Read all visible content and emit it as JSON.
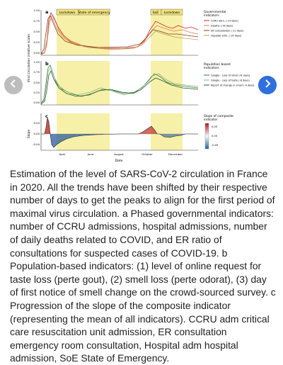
{
  "figure": {
    "panels": [
      {
        "letter": "a",
        "shaded_labels": [
          "Lockdown",
          "State of emergency",
          "SoE",
          "Lockdown"
        ],
        "y_ticks": [
          "1.00",
          "0.75",
          "0.50",
          "0.25",
          "0.00"
        ],
        "legend_title": [
          "Governmental",
          "indicators"
        ],
        "legend_items": [
          {
            "label": "CCRU adm. (-14 days)",
            "color": "#d62728"
          },
          {
            "label": "Deaths (-18 days)",
            "color": "#e8785a"
          },
          {
            "label": "ER consultation (-11 days)",
            "color": "#8a3b1f"
          },
          {
            "label": "Hospital adm. (-14 days)",
            "color": "#b9a15a"
          }
        ]
      },
      {
        "letter": "b",
        "y_ticks": [
          "1.00",
          "0.75",
          "0.50",
          "0.25",
          "0.00"
        ],
        "legend_title": [
          "Population based",
          "indicators"
        ],
        "legend_items": [
          {
            "label": "Google - Loss of smell (-8 days)",
            "color": "#3a7d3a"
          },
          {
            "label": "Google - Loss of taste (-8 days)",
            "color": "#7fb07f"
          },
          {
            "label": "Report of change in smell (-4 days)",
            "color": "#1f5a2e"
          }
        ]
      },
      {
        "letter": "c",
        "y_ticks": [
          "0.04",
          "0.00",
          "-0.04"
        ],
        "legend_title": [
          "Slope of composite",
          "indicator"
        ],
        "colorbar_ticks": [
          "0.05",
          "0.00",
          "-0.05"
        ]
      }
    ],
    "y_axis_label_ab": "Viral circulation (relative scale)",
    "y_axis_label_c": "Slope",
    "x_ticks": [
      "April",
      "June",
      "August",
      "October",
      "December"
    ],
    "x_label": "Date",
    "colors": {
      "shade": "#f7f0a8",
      "positive_slope": "#c0392b",
      "negative_slope": "#2c5b9c"
    }
  },
  "navigation": {
    "prev_icon": "chevron-left-icon",
    "next_icon": "chevron-right-icon"
  },
  "caption": "Estimation of the level of SARS-CoV-2 circulation in France in 2020. All the trends have been shifted by their respective number of days to get the peaks to align for the first period of maximal virus circulation. a Phased governmental indicators: number of CCRU admissions, hospital admissions, number of daily deaths related to COVID, and ER ratio of consultations for suspected cases of COVID-19. b Population-based indicators: (1) level of online request for taste loss (perte gout), (2) smell loss (perte odorat), (3) day of first notice of smell change on the crowd-sourced survey. c Progression of the slope of the composite indicator (representing the mean of all indicators). CCRU adm critical care resuscitation unit admission, ER consultation emergency room consultation, Hospital adm hospital admission, SoE State of Emergency."
}
